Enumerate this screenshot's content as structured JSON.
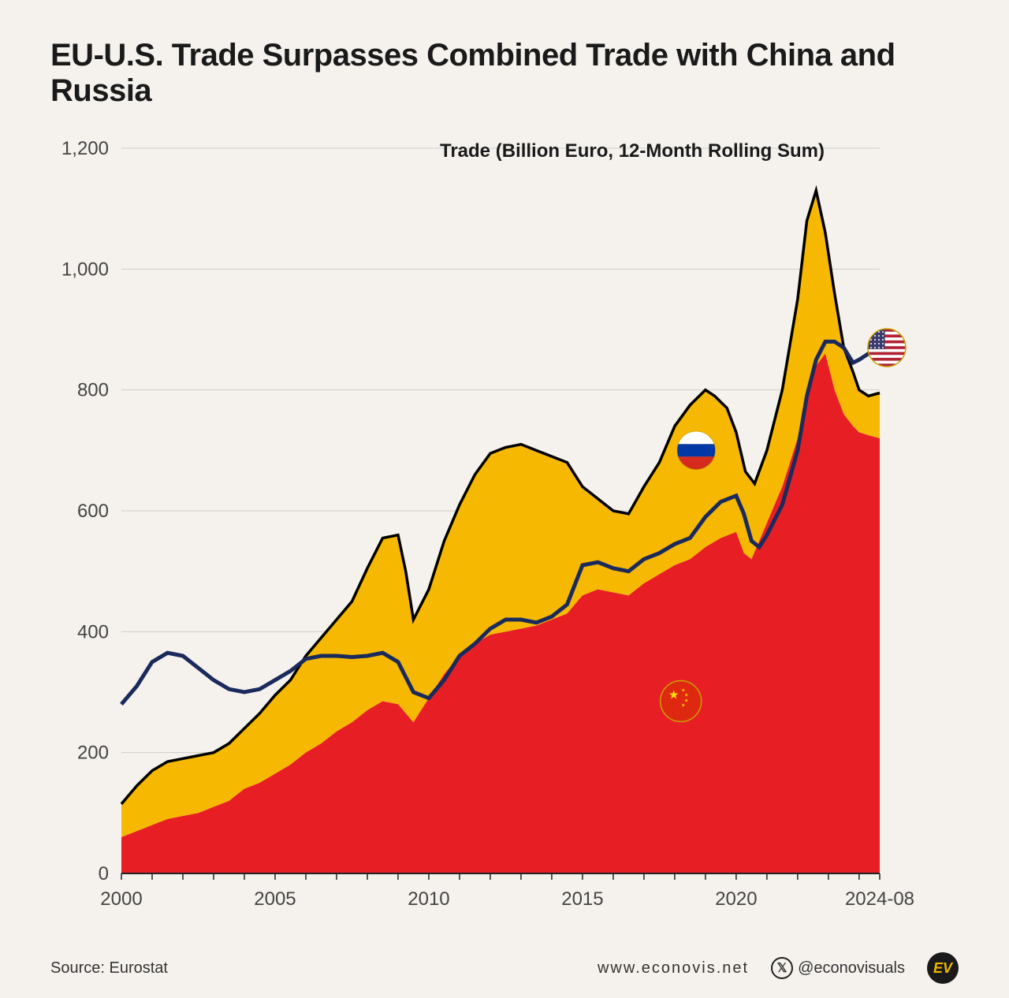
{
  "title": "EU-U.S. Trade Surpasses Combined Trade with China and Russia",
  "subtitle": "Trade (Billion Euro, 12-Month Rolling Sum)",
  "source_label": "Source: Eurostat",
  "website": "www.econovis.net",
  "handle": "@econovisuals",
  "badge": "EV",
  "chart": {
    "type": "stacked-area-plus-line",
    "background_color": "#f5f2ed",
    "grid_color": "#d0cdc6",
    "axis_color": "#222222",
    "title_fontsize": 40,
    "label_fontsize": 24,
    "ylim": [
      0,
      1200
    ],
    "ytick_step": 200,
    "y_ticks": [
      "0",
      "200",
      "400",
      "600",
      "800",
      "1,000",
      "1,200"
    ],
    "xlim": [
      2000,
      2024.67
    ],
    "x_ticks": [
      {
        "x": 2000,
        "label": "2000"
      },
      {
        "x": 2005,
        "label": "2005"
      },
      {
        "x": 2010,
        "label": "2010"
      },
      {
        "x": 2015,
        "label": "2015"
      },
      {
        "x": 2020,
        "label": "2020"
      },
      {
        "x": 2024.67,
        "label": "2024-08"
      }
    ],
    "series": {
      "china": {
        "label": "China",
        "color": "#e81e25",
        "flag_pos": {
          "x": 2018.2,
          "y": 285
        },
        "values": [
          [
            2000,
            60
          ],
          [
            2000.5,
            70
          ],
          [
            2001,
            80
          ],
          [
            2001.5,
            90
          ],
          [
            2002,
            95
          ],
          [
            2002.5,
            100
          ],
          [
            2003,
            110
          ],
          [
            2003.5,
            120
          ],
          [
            2004,
            140
          ],
          [
            2004.5,
            150
          ],
          [
            2005,
            165
          ],
          [
            2005.5,
            180
          ],
          [
            2006,
            200
          ],
          [
            2006.5,
            215
          ],
          [
            2007,
            235
          ],
          [
            2007.5,
            250
          ],
          [
            2008,
            270
          ],
          [
            2008.5,
            285
          ],
          [
            2009,
            280
          ],
          [
            2009.5,
            250
          ],
          [
            2010,
            290
          ],
          [
            2010.5,
            330
          ],
          [
            2011,
            360
          ],
          [
            2011.5,
            380
          ],
          [
            2012,
            395
          ],
          [
            2012.5,
            400
          ],
          [
            2013,
            405
          ],
          [
            2013.5,
            410
          ],
          [
            2014,
            420
          ],
          [
            2014.5,
            430
          ],
          [
            2015,
            460
          ],
          [
            2015.5,
            470
          ],
          [
            2016,
            465
          ],
          [
            2016.5,
            460
          ],
          [
            2017,
            480
          ],
          [
            2017.5,
            495
          ],
          [
            2018,
            510
          ],
          [
            2018.5,
            520
          ],
          [
            2019,
            540
          ],
          [
            2019.5,
            555
          ],
          [
            2020,
            565
          ],
          [
            2020.25,
            530
          ],
          [
            2020.5,
            520
          ],
          [
            2021,
            580
          ],
          [
            2021.5,
            640
          ],
          [
            2022,
            720
          ],
          [
            2022.3,
            780
          ],
          [
            2022.6,
            840
          ],
          [
            2022.9,
            860
          ],
          [
            2023.2,
            800
          ],
          [
            2023.5,
            760
          ],
          [
            2023.8,
            740
          ],
          [
            2024,
            730
          ],
          [
            2024.3,
            725
          ],
          [
            2024.67,
            720
          ]
        ]
      },
      "russia_plus_china_total": {
        "label": "China + Russia",
        "color_russia": "#f6b800",
        "flag_pos": {
          "x": 2018.7,
          "y": 700
        },
        "values": [
          [
            2000,
            115
          ],
          [
            2000.5,
            145
          ],
          [
            2001,
            170
          ],
          [
            2001.5,
            185
          ],
          [
            2002,
            190
          ],
          [
            2002.5,
            195
          ],
          [
            2003,
            200
          ],
          [
            2003.5,
            215
          ],
          [
            2004,
            240
          ],
          [
            2004.5,
            265
          ],
          [
            2005,
            295
          ],
          [
            2005.5,
            320
          ],
          [
            2006,
            360
          ],
          [
            2006.5,
            390
          ],
          [
            2007,
            420
          ],
          [
            2007.5,
            450
          ],
          [
            2008,
            505
          ],
          [
            2008.5,
            555
          ],
          [
            2009,
            560
          ],
          [
            2009.25,
            500
          ],
          [
            2009.5,
            420
          ],
          [
            2010,
            470
          ],
          [
            2010.5,
            550
          ],
          [
            2011,
            610
          ],
          [
            2011.5,
            660
          ],
          [
            2012,
            695
          ],
          [
            2012.5,
            705
          ],
          [
            2013,
            710
          ],
          [
            2013.5,
            700
          ],
          [
            2014,
            690
          ],
          [
            2014.5,
            680
          ],
          [
            2015,
            640
          ],
          [
            2015.5,
            620
          ],
          [
            2016,
            600
          ],
          [
            2016.5,
            595
          ],
          [
            2017,
            640
          ],
          [
            2017.5,
            680
          ],
          [
            2018,
            740
          ],
          [
            2018.5,
            775
          ],
          [
            2019,
            800
          ],
          [
            2019.3,
            790
          ],
          [
            2019.7,
            770
          ],
          [
            2020,
            730
          ],
          [
            2020.3,
            665
          ],
          [
            2020.6,
            645
          ],
          [
            2021,
            700
          ],
          [
            2021.5,
            800
          ],
          [
            2022,
            950
          ],
          [
            2022.3,
            1080
          ],
          [
            2022.6,
            1130
          ],
          [
            2022.9,
            1060
          ],
          [
            2023.2,
            960
          ],
          [
            2023.5,
            870
          ],
          [
            2023.8,
            830
          ],
          [
            2024,
            800
          ],
          [
            2024.3,
            790
          ],
          [
            2024.67,
            795
          ]
        ]
      },
      "us_line": {
        "label": "United States",
        "color": "#1b2a5c",
        "line_width": 5,
        "flag_pos": {
          "x": 2024.9,
          "y": 870
        },
        "values": [
          [
            2000,
            280
          ],
          [
            2000.5,
            310
          ],
          [
            2001,
            350
          ],
          [
            2001.5,
            365
          ],
          [
            2002,
            360
          ],
          [
            2002.5,
            340
          ],
          [
            2003,
            320
          ],
          [
            2003.5,
            305
          ],
          [
            2004,
            300
          ],
          [
            2004.5,
            305
          ],
          [
            2005,
            320
          ],
          [
            2005.5,
            335
          ],
          [
            2006,
            355
          ],
          [
            2006.5,
            360
          ],
          [
            2007,
            360
          ],
          [
            2007.5,
            358
          ],
          [
            2008,
            360
          ],
          [
            2008.5,
            365
          ],
          [
            2009,
            350
          ],
          [
            2009.5,
            300
          ],
          [
            2010,
            290
          ],
          [
            2010.5,
            320
          ],
          [
            2011,
            360
          ],
          [
            2011.5,
            380
          ],
          [
            2012,
            405
          ],
          [
            2012.5,
            420
          ],
          [
            2013,
            420
          ],
          [
            2013.5,
            415
          ],
          [
            2014,
            425
          ],
          [
            2014.5,
            445
          ],
          [
            2015,
            510
          ],
          [
            2015.5,
            515
          ],
          [
            2016,
            505
          ],
          [
            2016.5,
            500
          ],
          [
            2017,
            520
          ],
          [
            2017.5,
            530
          ],
          [
            2018,
            545
          ],
          [
            2018.5,
            555
          ],
          [
            2019,
            590
          ],
          [
            2019.5,
            615
          ],
          [
            2020,
            625
          ],
          [
            2020.25,
            595
          ],
          [
            2020.5,
            550
          ],
          [
            2020.75,
            540
          ],
          [
            2021,
            560
          ],
          [
            2021.5,
            610
          ],
          [
            2022,
            700
          ],
          [
            2022.3,
            790
          ],
          [
            2022.6,
            850
          ],
          [
            2022.9,
            880
          ],
          [
            2023.2,
            880
          ],
          [
            2023.5,
            870
          ],
          [
            2023.8,
            845
          ],
          [
            2024,
            850
          ],
          [
            2024.3,
            860
          ],
          [
            2024.67,
            865
          ]
        ]
      }
    }
  }
}
